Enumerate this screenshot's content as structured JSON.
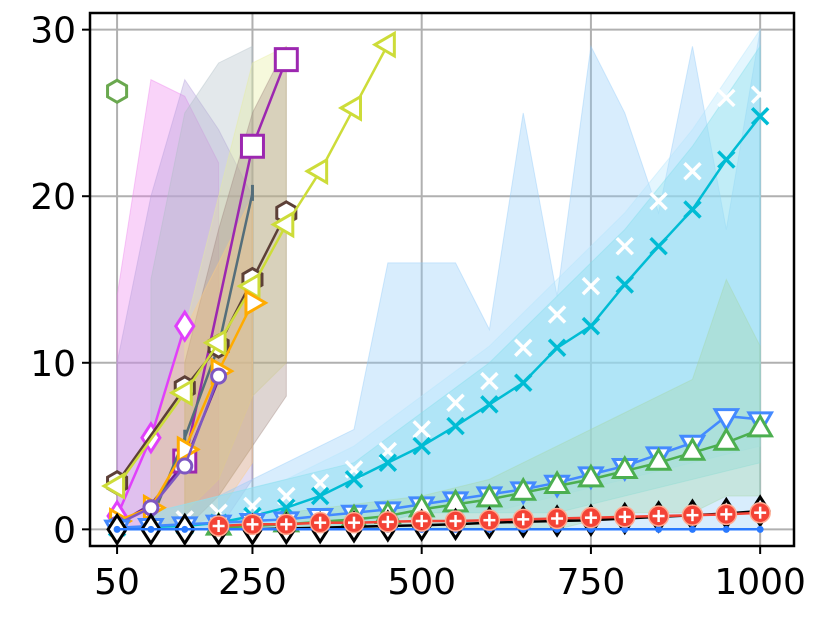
{
  "chart_data": {
    "type": "line",
    "title": "",
    "xlabel": "",
    "ylabel": "",
    "xlim": [
      10,
      1050
    ],
    "ylim": [
      -1,
      31
    ],
    "x_ticks": [
      50,
      250,
      500,
      750,
      1000
    ],
    "x_tick_labels": [
      "50",
      "250",
      "500",
      "750",
      "1000"
    ],
    "y_ticks": [
      0,
      10,
      20,
      30
    ],
    "y_tick_labels": [
      "0",
      "10",
      "20",
      "30"
    ],
    "grid": true,
    "legend": "none",
    "bands": [
      {
        "color": "#ee82ee",
        "x": [
          50,
          100,
          150,
          200
        ],
        "low": [
          0,
          0,
          0,
          2
        ],
        "high": [
          14,
          27,
          26,
          22
        ]
      },
      {
        "color": "#b39ddb",
        "x": [
          50,
          100,
          150,
          200,
          250
        ],
        "low": [
          0,
          0,
          0,
          0,
          3
        ],
        "high": [
          10,
          20,
          27,
          24,
          20
        ]
      },
      {
        "color": "#b0bec5",
        "x": [
          100,
          150,
          200,
          250
        ],
        "low": [
          0,
          0,
          2,
          5
        ],
        "high": [
          15,
          25,
          28,
          29
        ]
      },
      {
        "color": "#e6ee9c",
        "x": [
          150,
          200,
          250,
          300
        ],
        "low": [
          1,
          3,
          8,
          10
        ],
        "high": [
          12,
          20,
          28,
          29
        ]
      },
      {
        "color": "#a1887f",
        "x": [
          150,
          200,
          250,
          300
        ],
        "low": [
          0,
          2,
          5,
          8
        ],
        "high": [
          10,
          18,
          25,
          29
        ]
      },
      {
        "color": "#ffcc80",
        "x": [
          100,
          150,
          200,
          250
        ],
        "low": [
          0,
          0,
          1,
          4
        ],
        "high": [
          5,
          12,
          16,
          20
        ]
      },
      {
        "color": "#90caf9",
        "x": [
          200,
          300,
          400,
          450,
          500,
          550,
          600,
          650,
          700,
          750,
          800,
          850,
          900,
          950,
          1000
        ],
        "low": [
          0,
          0,
          0,
          0,
          0,
          0,
          0,
          0,
          0,
          0,
          0,
          0,
          0,
          0,
          0
        ],
        "high": [
          2,
          4,
          6,
          16,
          16,
          16,
          12,
          25,
          14,
          29,
          25,
          19,
          29,
          18,
          30
        ]
      },
      {
        "color": "#b3e5fc",
        "x": [
          100,
          300,
          400,
          500,
          600,
          700,
          800,
          900,
          1000
        ],
        "low": [
          0,
          0,
          0,
          1,
          1,
          2,
          3,
          4,
          5
        ],
        "high": [
          1,
          3,
          5,
          8,
          11,
          15,
          19,
          24,
          30
        ]
      },
      {
        "color": "#80deea",
        "x": [
          100,
          300,
          400,
          500,
          600,
          700,
          800,
          900,
          1000
        ],
        "low": [
          0,
          0,
          0,
          1,
          1,
          1,
          2,
          3,
          4
        ],
        "high": [
          1,
          3,
          4,
          7,
          10,
          14,
          18,
          23,
          29
        ]
      },
      {
        "color": "#a5d6a7",
        "x": [
          300,
          500,
          600,
          700,
          800,
          900,
          950,
          1000
        ],
        "low": [
          0,
          0,
          0,
          0,
          1,
          1,
          2,
          2
        ],
        "high": [
          1,
          2,
          3,
          5,
          7,
          9,
          15,
          11
        ]
      }
    ],
    "series": [
      {
        "color": "#6aa84f",
        "marker": "hexagon",
        "filled": false,
        "x": [
          50
        ],
        "y": [
          26.3
        ]
      },
      {
        "color": "#6a1b9a",
        "marker": "none",
        "filled": false,
        "x": [
          50,
          100,
          150,
          200
        ],
        "y": [
          0.3,
          1.5,
          4,
          9
        ]
      },
      {
        "color": "#e040fb",
        "marker": "diamond",
        "filled": false,
        "x": [
          50,
          100,
          150
        ],
        "y": [
          0.8,
          5.5,
          12.2
        ]
      },
      {
        "color": "#9c27b0",
        "marker": "square",
        "filled": false,
        "x": [
          150,
          250,
          300
        ],
        "y": [
          4.1,
          23,
          28.2
        ]
      },
      {
        "color": "#546e7a",
        "marker": "plus-line",
        "filled": false,
        "x": [
          100,
          150,
          200,
          250
        ],
        "y": [
          0.5,
          5.5,
          11,
          20.2
        ]
      },
      {
        "color": "#5d4037",
        "marker": "hexagon",
        "filled": false,
        "x": [
          50,
          150,
          200,
          250,
          300
        ],
        "y": [
          2.8,
          8.5,
          11,
          15,
          19
        ]
      },
      {
        "color": "#cddc39",
        "marker": "triangle-left",
        "filled": false,
        "x": [
          50,
          150,
          200,
          250,
          300,
          350,
          400,
          450
        ],
        "y": [
          2.6,
          8.2,
          11.2,
          14.6,
          18.3,
          21.5,
          25.3,
          29.1
        ]
      },
      {
        "color": "#ffab00",
        "marker": "triangle-right",
        "filled": false,
        "x": [
          50,
          100,
          150,
          200,
          250
        ],
        "y": [
          0.5,
          1.3,
          4.8,
          9.5,
          13.6
        ]
      },
      {
        "color": "#7e57c2",
        "marker": "circle",
        "filled": false,
        "x": [
          50,
          100,
          150,
          200
        ],
        "y": [
          0.3,
          1.3,
          3.8,
          9.2
        ]
      },
      {
        "color": "#ffffff",
        "marker": "x",
        "filled": false,
        "x": [
          150,
          200,
          250,
          300,
          350,
          400,
          450,
          500,
          550,
          600,
          650,
          700,
          750,
          800,
          850,
          900,
          950,
          1000
        ],
        "y": [
          0.6,
          1,
          1.4,
          2,
          2.8,
          3.6,
          4.7,
          6,
          7.6,
          8.9,
          10.9,
          12.9,
          14.6,
          17,
          19.7,
          21.5,
          25.9,
          26.1
        ]
      },
      {
        "color": "#00bcd4",
        "marker": "x",
        "filled": false,
        "x": [
          50,
          150,
          200,
          250,
          300,
          350,
          400,
          450,
          500,
          550,
          600,
          650,
          700,
          750,
          800,
          850,
          900,
          950,
          1000
        ],
        "y": [
          0.1,
          0.2,
          0.4,
          0.8,
          1.3,
          2,
          3,
          4,
          5,
          6.2,
          7.5,
          8.8,
          10.9,
          12.2,
          14.7,
          17,
          19.2,
          22.2,
          24.8
        ]
      },
      {
        "color": "#448aff",
        "marker": "triangle-down",
        "filled": false,
        "x": [
          50,
          100,
          150,
          200,
          250,
          300,
          350,
          400,
          450,
          500,
          550,
          600,
          650,
          700,
          750,
          800,
          850,
          900,
          950,
          1000
        ],
        "y": [
          0.1,
          0.2,
          0.3,
          0.4,
          0.5,
          0.6,
          0.8,
          1,
          1.2,
          1.5,
          1.8,
          2.1,
          2.4,
          2.8,
          3.3,
          3.8,
          4.5,
          5.2,
          6.8,
          6.6
        ]
      },
      {
        "color": "#4caf50",
        "marker": "triangle-up",
        "filled": false,
        "x": [
          200,
          300,
          400,
          450,
          500,
          550,
          600,
          650,
          700,
          750,
          800,
          850,
          900,
          950,
          1000
        ],
        "y": [
          0.1,
          0.3,
          0.6,
          0.8,
          1.2,
          1.5,
          1.8,
          2.2,
          2.6,
          3,
          3.5,
          4,
          4.6,
          5.2,
          6
        ]
      },
      {
        "color": "#000000",
        "marker": "diamond",
        "filled": false,
        "x": [
          50,
          100,
          150,
          200,
          250,
          300,
          350,
          400,
          450,
          500,
          550,
          600,
          650,
          700,
          750,
          800,
          850,
          900,
          950,
          1000
        ],
        "y": [
          0,
          0,
          0,
          0,
          0,
          0.05,
          0.1,
          0.15,
          0.2,
          0.25,
          0.3,
          0.4,
          0.45,
          0.5,
          0.55,
          0.65,
          0.75,
          0.85,
          0.95,
          1.1
        ]
      },
      {
        "color": "#2979ff",
        "marker": "dot",
        "filled": true,
        "x": [
          50,
          100,
          150,
          200,
          250,
          300,
          350,
          400,
          450,
          500,
          550,
          600,
          650,
          700,
          750,
          800,
          850,
          900,
          950,
          1000
        ],
        "y": [
          0,
          0,
          0,
          0,
          0,
          0,
          0,
          0,
          0,
          0,
          0,
          0,
          0,
          0,
          0,
          0,
          0,
          0,
          0,
          0
        ]
      },
      {
        "color": "#f44336",
        "marker": "circle-plus",
        "filled": true,
        "x": [
          200,
          250,
          300,
          350,
          400,
          450,
          500,
          550,
          600,
          650,
          700,
          750,
          800,
          850,
          900,
          950,
          1000
        ],
        "y": [
          0.2,
          0.3,
          0.3,
          0.4,
          0.4,
          0.45,
          0.5,
          0.5,
          0.55,
          0.6,
          0.65,
          0.7,
          0.75,
          0.8,
          0.85,
          0.9,
          1
        ]
      }
    ]
  }
}
